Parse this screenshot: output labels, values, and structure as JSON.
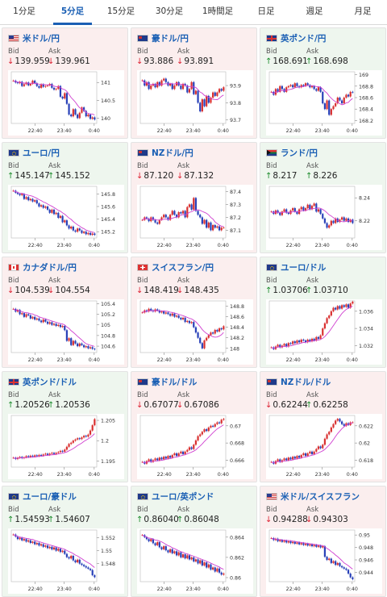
{
  "tabs": [
    "1分足",
    "5分足",
    "15分足",
    "30分足",
    "1時間足",
    "日足",
    "週足",
    "月足"
  ],
  "active_tab": 1,
  "labels": {
    "bid": "Bid",
    "ask": "Ask"
  },
  "colors": {
    "down_bg": "#fbeeee",
    "up_bg": "#eef6ee",
    "up_candle": "#d93030",
    "down_candle": "#2840b8",
    "ma_line": "#d040d0"
  },
  "pairs": [
    {
      "flag": "us",
      "name": "米ドル/円",
      "bid": "139.959",
      "ask": "139.961",
      "bid_dir": "down",
      "ask_dir": "down",
      "chart_data": {
        "type": "candlestick",
        "x_ticks": [
          "22:40",
          "23:40",
          "0:40"
        ],
        "y_ticks": [
          "140",
          "140.5",
          "141"
        ],
        "ylim": [
          139.85,
          141.3
        ],
        "closes": [
          141.05,
          141.0,
          140.98,
          141.02,
          140.9,
          140.95,
          141.0,
          140.92,
          140.96,
          141.05,
          140.98,
          140.9,
          140.85,
          140.95,
          140.88,
          140.9,
          140.92,
          140.96,
          140.85,
          140.8,
          140.82,
          140.9,
          140.6,
          140.55,
          140.7,
          140.4,
          140.1,
          140.05,
          140.25,
          140.1,
          140.0,
          140.15,
          140.3,
          140.2,
          140.05,
          140.1,
          139.98,
          140.02,
          139.96
        ]
      }
    },
    {
      "flag": "au",
      "name": "豪ドル/円",
      "bid": "93.886",
      "ask": "93.891",
      "bid_dir": "down",
      "ask_dir": "down",
      "chart_data": {
        "type": "candlestick",
        "x_ticks": [
          "22:40",
          "23:40",
          "0:40"
        ],
        "y_ticks": [
          "93.7",
          "93.8",
          "93.9"
        ],
        "ylim": [
          93.68,
          93.98
        ],
        "closes": [
          93.93,
          93.9,
          93.92,
          93.88,
          93.9,
          93.91,
          93.89,
          93.92,
          93.9,
          93.93,
          93.94,
          93.92,
          93.9,
          93.91,
          93.88,
          93.9,
          93.92,
          93.9,
          93.88,
          93.91,
          93.9,
          93.86,
          93.88,
          93.92,
          93.85,
          93.87,
          93.8,
          93.75,
          93.82,
          93.78,
          93.84,
          93.8,
          93.83,
          93.86,
          93.84,
          93.86,
          93.88,
          93.87,
          93.89
        ]
      }
    },
    {
      "flag": "gb",
      "name": "英ポンド/円",
      "bid": "168.691",
      "ask": "168.698",
      "bid_dir": "up",
      "ask_dir": "up",
      "chart_data": {
        "type": "candlestick",
        "x_ticks": [
          "22:40",
          "23:40",
          "0:40"
        ],
        "y_ticks": [
          "168.2",
          "168.4",
          "168.6",
          "168.8",
          "169"
        ],
        "ylim": [
          168.15,
          169.05
        ],
        "closes": [
          168.7,
          168.65,
          168.75,
          168.7,
          168.8,
          168.75,
          168.7,
          168.78,
          168.8,
          168.82,
          168.78,
          168.85,
          168.8,
          168.78,
          168.82,
          168.8,
          168.85,
          168.82,
          168.78,
          168.8,
          168.75,
          168.72,
          168.78,
          168.7,
          168.5,
          168.4,
          168.55,
          168.3,
          168.4,
          168.45,
          168.5,
          168.6,
          168.55,
          168.5,
          168.6,
          168.65,
          168.62,
          168.7,
          168.69
        ]
      }
    },
    {
      "flag": "eu",
      "name": "ユーロ/円",
      "bid": "145.147",
      "ask": "145.152",
      "bid_dir": "up",
      "ask_dir": "up",
      "chart_data": {
        "type": "candlestick",
        "x_ticks": [
          "22:40",
          "23:40",
          "0:40"
        ],
        "y_ticks": [
          "145.2",
          "145.4",
          "145.6",
          "145.8"
        ],
        "ylim": [
          145.1,
          145.92
        ],
        "closes": [
          145.85,
          145.82,
          145.8,
          145.78,
          145.8,
          145.72,
          145.75,
          145.7,
          145.72,
          145.68,
          145.7,
          145.65,
          145.6,
          145.62,
          145.58,
          145.6,
          145.55,
          145.5,
          145.55,
          145.48,
          145.5,
          145.42,
          145.45,
          145.35,
          145.38,
          145.3,
          145.25,
          145.28,
          145.22,
          145.2,
          145.25,
          145.22,
          145.18,
          145.2,
          145.16,
          145.18,
          145.15,
          145.17,
          145.15
        ]
      }
    },
    {
      "flag": "nz",
      "name": "NZドル/円",
      "bid": "87.120",
      "ask": "87.132",
      "bid_dir": "down",
      "ask_dir": "down",
      "chart_data": {
        "type": "candlestick",
        "x_ticks": [
          "22:40",
          "23:40",
          "0:40"
        ],
        "y_ticks": [
          "87.1",
          "87.2",
          "87.3",
          "87.4"
        ],
        "ylim": [
          87.04,
          87.44
        ],
        "closes": [
          87.18,
          87.2,
          87.19,
          87.17,
          87.2,
          87.18,
          87.16,
          87.15,
          87.18,
          87.2,
          87.22,
          87.2,
          87.18,
          87.22,
          87.25,
          87.22,
          87.2,
          87.24,
          87.23,
          87.25,
          87.2,
          87.28,
          87.3,
          87.26,
          87.35,
          87.25,
          87.22,
          87.2,
          87.15,
          87.18,
          87.12,
          87.16,
          87.1,
          87.14,
          87.12,
          87.13,
          87.1,
          87.12,
          87.12
        ]
      }
    },
    {
      "flag": "za",
      "name": "ランド/円",
      "bid": "8.217",
      "ask": "8.226",
      "bid_dir": "up",
      "ask_dir": "up",
      "chart_data": {
        "type": "candlestick",
        "x_ticks": [
          "22:40",
          "23:40",
          "0:40"
        ],
        "y_ticks": [
          "8.22",
          "8.24"
        ],
        "ylim": [
          8.205,
          8.25
        ],
        "closes": [
          8.228,
          8.226,
          8.229,
          8.227,
          8.225,
          8.228,
          8.23,
          8.227,
          8.226,
          8.229,
          8.231,
          8.228,
          8.226,
          8.23,
          8.232,
          8.229,
          8.231,
          8.234,
          8.23,
          8.233,
          8.235,
          8.228,
          8.23,
          8.226,
          8.222,
          8.218,
          8.214,
          8.216,
          8.22,
          8.218,
          8.222,
          8.219,
          8.221,
          8.223,
          8.22,
          8.222,
          8.219,
          8.221,
          8.218
        ]
      }
    },
    {
      "flag": "ca",
      "name": "カナダドル/円",
      "bid": "104.539",
      "ask": "104.554",
      "bid_dir": "down",
      "ask_dir": "down",
      "chart_data": {
        "type": "candlestick",
        "x_ticks": [
          "22:40",
          "23:40",
          "0:40"
        ],
        "y_ticks": [
          "104.6",
          "104.8",
          "105",
          "105.2",
          "105.4"
        ],
        "ylim": [
          104.48,
          105.45
        ],
        "closes": [
          105.3,
          105.25,
          105.28,
          105.2,
          105.22,
          105.15,
          105.2,
          105.18,
          105.12,
          105.15,
          105.1,
          105.12,
          105.08,
          105.05,
          105.1,
          105.06,
          105.02,
          105.05,
          105.0,
          105.02,
          104.98,
          105.0,
          104.96,
          104.98,
          104.9,
          104.7,
          104.75,
          104.62,
          104.7,
          104.65,
          104.6,
          104.65,
          104.62,
          104.58,
          104.6,
          104.56,
          104.58,
          104.55,
          104.54
        ]
      }
    },
    {
      "flag": "ch",
      "name": "スイスフラン/円",
      "bid": "148.419",
      "ask": "148.435",
      "bid_dir": "down",
      "ask_dir": "down",
      "chart_data": {
        "type": "candlestick",
        "x_ticks": [
          "22:40",
          "23:40",
          "0:40"
        ],
        "y_ticks": [
          "148",
          "148.2",
          "148.4",
          "148.6",
          "148.8"
        ],
        "ylim": [
          147.92,
          148.9
        ],
        "closes": [
          148.68,
          148.72,
          148.7,
          148.75,
          148.72,
          148.7,
          148.74,
          148.72,
          148.68,
          148.7,
          148.66,
          148.68,
          148.65,
          148.62,
          148.66,
          148.6,
          148.62,
          148.58,
          148.55,
          148.58,
          148.5,
          148.52,
          148.48,
          148.5,
          148.4,
          148.3,
          148.2,
          148.1,
          148.0,
          148.15,
          148.2,
          148.25,
          148.3,
          148.28,
          148.35,
          148.32,
          148.38,
          148.36,
          148.42
        ]
      }
    },
    {
      "flag": "eu",
      "name": "ユーロ/ドル",
      "bid": "1.03706",
      "ask": "1.03710",
      "bid_dir": "up",
      "ask_dir": "up",
      "chart_data": {
        "type": "candlestick",
        "x_ticks": [
          "22:40",
          "23:40",
          "0:40"
        ],
        "y_ticks": [
          "1.032",
          "1.034",
          "1.036"
        ],
        "ylim": [
          1.0312,
          1.0372
        ],
        "closes": [
          1.0318,
          1.0316,
          1.0319,
          1.0321,
          1.0318,
          1.032,
          1.0322,
          1.0319,
          1.0323,
          1.0322,
          1.0325,
          1.0323,
          1.0326,
          1.0324,
          1.0327,
          1.0326,
          1.0324,
          1.0327,
          1.0325,
          1.0328,
          1.0326,
          1.033,
          1.0328,
          1.0332,
          1.034,
          1.0346,
          1.0352,
          1.0355,
          1.036,
          1.0364,
          1.0362,
          1.0366,
          1.0363,
          1.0367,
          1.0365,
          1.0368,
          1.0364,
          1.0369,
          1.0371
        ]
      }
    },
    {
      "flag": "gb",
      "name": "英ポンド/ドル",
      "bid": "1.20526",
      "ask": "1.20536",
      "bid_dir": "up",
      "ask_dir": "up",
      "chart_data": {
        "type": "candlestick",
        "x_ticks": [
          "22:40",
          "23:40",
          "0:40"
        ],
        "y_ticks": [
          "1.195",
          "1.2",
          "1.205"
        ],
        "ylim": [
          1.1935,
          1.2062
        ],
        "closes": [
          1.1958,
          1.1955,
          1.1958,
          1.196,
          1.1957,
          1.1959,
          1.1962,
          1.196,
          1.1963,
          1.1961,
          1.1964,
          1.1962,
          1.1965,
          1.1963,
          1.1966,
          1.1968,
          1.1965,
          1.1968,
          1.197,
          1.1967,
          1.197,
          1.1972,
          1.1975,
          1.1973,
          1.1978,
          1.1985,
          1.1992,
          1.1995,
          1.2,
          1.2003,
          1.2006,
          1.2004,
          1.2008,
          1.2012,
          1.201,
          1.2015,
          1.2025,
          1.2038,
          1.2053
        ]
      }
    },
    {
      "flag": "au",
      "name": "豪ドル/ドル",
      "bid": "0.67077",
      "ask": "0.67086",
      "bid_dir": "down",
      "ask_dir": "down",
      "chart_data": {
        "type": "candlestick",
        "x_ticks": [
          "22:40",
          "23:40",
          "0:40"
        ],
        "y_ticks": [
          "0.666",
          "0.668",
          "0.67"
        ],
        "ylim": [
          0.6652,
          0.6712
        ],
        "closes": [
          0.6658,
          0.6656,
          0.6659,
          0.6661,
          0.6658,
          0.666,
          0.6662,
          0.666,
          0.6663,
          0.6661,
          0.6664,
          0.6662,
          0.6665,
          0.6663,
          0.6666,
          0.6668,
          0.6665,
          0.6668,
          0.667,
          0.6667,
          0.667,
          0.6672,
          0.6675,
          0.6673,
          0.6678,
          0.6683,
          0.6688,
          0.669,
          0.6693,
          0.6696,
          0.6694,
          0.6698,
          0.67,
          0.6699,
          0.6702,
          0.6704,
          0.6703,
          0.6707,
          0.6708
        ]
      }
    },
    {
      "flag": "nz",
      "name": "NZドル/ドル",
      "bid": "0.62244",
      "ask": "0.62258",
      "bid_dir": "down",
      "ask_dir": "up",
      "chart_data": {
        "type": "candlestick",
        "x_ticks": [
          "22:40",
          "23:40",
          "0:40"
        ],
        "y_ticks": [
          "0.618",
          "0.62",
          "0.622"
        ],
        "ylim": [
          0.6172,
          0.6232
        ],
        "closes": [
          0.6178,
          0.6176,
          0.6179,
          0.6181,
          0.6178,
          0.618,
          0.6182,
          0.618,
          0.6183,
          0.6181,
          0.6184,
          0.6182,
          0.6185,
          0.6183,
          0.6186,
          0.6188,
          0.6185,
          0.6188,
          0.619,
          0.6187,
          0.619,
          0.6193,
          0.6196,
          0.6194,
          0.6198,
          0.6205,
          0.621,
          0.6213,
          0.6218,
          0.6222,
          0.6226,
          0.6228,
          0.6225,
          0.6222,
          0.622,
          0.6223,
          0.6221,
          0.6224,
          0.6224
        ]
      }
    },
    {
      "flag": "eu",
      "name": "ユーロ/豪ドル",
      "bid": "1.54593",
      "ask": "1.54607",
      "bid_dir": "up",
      "ask_dir": "up",
      "chart_data": {
        "type": "candlestick",
        "x_ticks": [
          "22:40",
          "23:40",
          "0:40"
        ],
        "y_ticks": [
          "1.548",
          "1.55",
          "1.552"
        ],
        "ylim": [
          1.5452,
          1.5532
        ],
        "closes": [
          1.5525,
          1.5522,
          1.5518,
          1.552,
          1.5516,
          1.5518,
          1.5514,
          1.5516,
          1.5512,
          1.5514,
          1.551,
          1.5512,
          1.5508,
          1.551,
          1.5506,
          1.5508,
          1.5504,
          1.5506,
          1.5502,
          1.5505,
          1.55,
          1.5503,
          1.5498,
          1.55,
          1.5495,
          1.549,
          1.5488,
          1.5492,
          1.5485,
          1.5482,
          1.5486,
          1.548,
          1.5478,
          1.5476,
          1.5474,
          1.5472,
          1.547,
          1.5462,
          1.5459
        ]
      }
    },
    {
      "flag": "eu",
      "name": "ユーロ/英ポンド",
      "bid": "0.86040",
      "ask": "0.86048",
      "bid_dir": "up",
      "ask_dir": "up",
      "chart_data": {
        "type": "candlestick",
        "x_ticks": [
          "22:40",
          "23:40",
          "0:40"
        ],
        "y_ticks": [
          "0.86",
          "0.862",
          "0.864"
        ],
        "ylim": [
          0.8596,
          0.8647
        ],
        "closes": [
          0.8642,
          0.864,
          0.8638,
          0.8636,
          0.8638,
          0.8634,
          0.8632,
          0.8635,
          0.863,
          0.8628,
          0.8631,
          0.8627,
          0.8625,
          0.8628,
          0.8624,
          0.8626,
          0.8622,
          0.8625,
          0.862,
          0.8623,
          0.8619,
          0.8622,
          0.8618,
          0.862,
          0.8616,
          0.8618,
          0.8614,
          0.8617,
          0.8612,
          0.8615,
          0.861,
          0.8613,
          0.8608,
          0.861,
          0.8606,
          0.8609,
          0.8605,
          0.8603,
          0.8604
        ]
      }
    },
    {
      "flag": "us",
      "name": "米ドル/スイスフラン",
      "bid": "0.94288",
      "ask": "0.94303",
      "bid_dir": "down",
      "ask_dir": "down",
      "chart_data": {
        "type": "candlestick",
        "x_ticks": [
          "22:40",
          "23:40",
          "0:40"
        ],
        "y_ticks": [
          "0.944",
          "0.946",
          "0.948",
          "0.95"
        ],
        "ylim": [
          0.9425,
          0.9508
        ],
        "closes": [
          0.9495,
          0.9492,
          0.9494,
          0.949,
          0.9492,
          0.9489,
          0.9491,
          0.9488,
          0.949,
          0.9487,
          0.9489,
          0.9486,
          0.9488,
          0.9485,
          0.9487,
          0.9484,
          0.9486,
          0.9483,
          0.9485,
          0.9482,
          0.9484,
          0.9481,
          0.9483,
          0.948,
          0.9482,
          0.9465,
          0.946,
          0.9462,
          0.9455,
          0.9458,
          0.9452,
          0.9455,
          0.945,
          0.9448,
          0.9446,
          0.9444,
          0.9438,
          0.9432,
          0.9429
        ]
      }
    }
  ]
}
